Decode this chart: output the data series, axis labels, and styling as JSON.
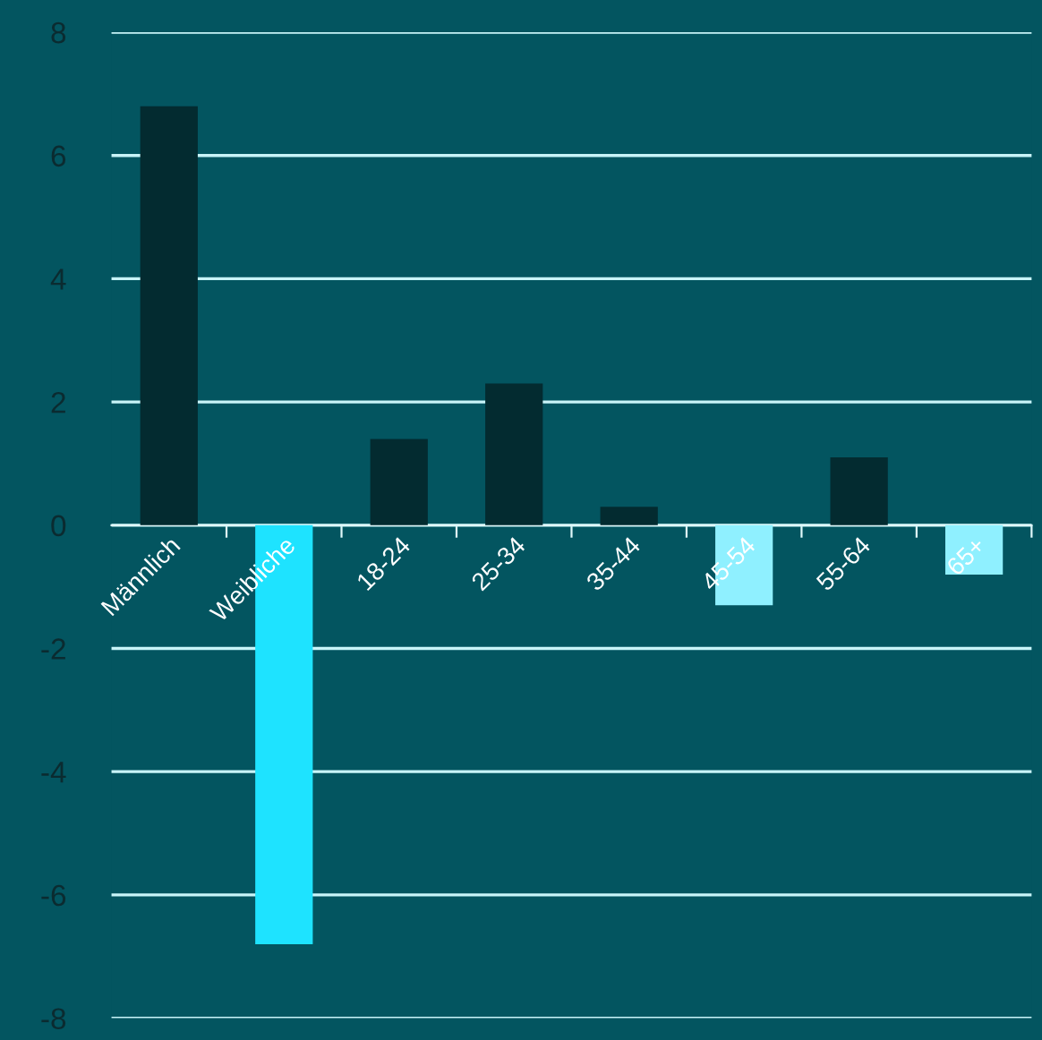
{
  "chart_data": {
    "type": "bar",
    "categories": [
      "Männlich",
      "Weibliche",
      "18-24",
      "25-34",
      "35-44",
      "45-54",
      "55-64",
      "65+"
    ],
    "values": [
      6.8,
      -6.8,
      1.4,
      2.3,
      0.3,
      -1.3,
      1.1,
      -0.8
    ],
    "colors": [
      "#032b30",
      "#1ee3ff",
      "#032b30",
      "#032b30",
      "#032b30",
      "#8ff0ff",
      "#032b30",
      "#8ff0ff"
    ],
    "ylim": [
      -8,
      8
    ],
    "yticks": [
      -8,
      -6,
      -4,
      -2,
      0,
      2,
      4,
      6,
      8
    ],
    "grid": "y",
    "legend": false
  }
}
